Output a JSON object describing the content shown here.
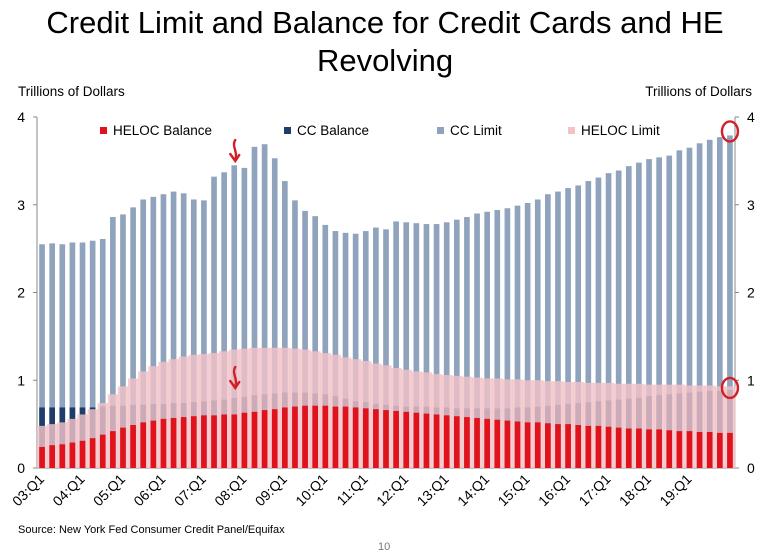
{
  "colors": {
    "heloc_balance": "#e0121c",
    "cc_balance": "#1f3d6b",
    "cc_limit": "#8fa3bd",
    "heloc_limit": "#f1c3c8",
    "annotation": "#d21f28"
  },
  "chart_data": {
    "type": "bar",
    "title": "Credit Limit and Balance for Credit Cards and HE Revolving",
    "ylabel_left": "Trillions of Dollars",
    "ylabel_right": "Trillions of Dollars",
    "ylim": [
      0,
      4
    ],
    "yticks": [
      "0",
      "1",
      "2",
      "3",
      "4"
    ],
    "xtick_labels": [
      "03:Q1",
      "04:Q1",
      "05:Q1",
      "06:Q1",
      "07:Q1",
      "08:Q1",
      "09:Q1",
      "10:Q1",
      "11:Q1",
      "12:Q1",
      "13:Q1",
      "14:Q1",
      "15:Q1",
      "16:Q1",
      "17:Q1",
      "18:Q1",
      "19:Q1"
    ],
    "legend": [
      "HELOC Balance",
      "CC Balance",
      "CC Limit",
      "HELOC Limit"
    ],
    "start_year": 2003,
    "series": [
      {
        "name": "HELOC Balance",
        "values": [
          0.24,
          0.26,
          0.27,
          0.29,
          0.31,
          0.34,
          0.38,
          0.42,
          0.46,
          0.49,
          0.52,
          0.54,
          0.56,
          0.57,
          0.58,
          0.59,
          0.6,
          0.6,
          0.61,
          0.61,
          0.63,
          0.64,
          0.66,
          0.67,
          0.69,
          0.7,
          0.71,
          0.71,
          0.71,
          0.7,
          0.7,
          0.69,
          0.68,
          0.67,
          0.66,
          0.65,
          0.64,
          0.63,
          0.62,
          0.61,
          0.6,
          0.59,
          0.58,
          0.57,
          0.56,
          0.55,
          0.54,
          0.53,
          0.52,
          0.52,
          0.51,
          0.5,
          0.5,
          0.49,
          0.48,
          0.48,
          0.47,
          0.46,
          0.45,
          0.45,
          0.44,
          0.44,
          0.43,
          0.42,
          0.42,
          0.41,
          0.41,
          0.4,
          0.4
        ]
      },
      {
        "name": "CC Balance",
        "values": [
          0.69,
          0.69,
          0.69,
          0.69,
          0.69,
          0.69,
          0.7,
          0.71,
          0.71,
          0.72,
          0.72,
          0.73,
          0.73,
          0.74,
          0.74,
          0.75,
          0.76,
          0.77,
          0.78,
          0.8,
          0.81,
          0.83,
          0.84,
          0.85,
          0.86,
          0.86,
          0.86,
          0.85,
          0.84,
          0.82,
          0.79,
          0.76,
          0.75,
          0.73,
          0.72,
          0.71,
          0.7,
          0.7,
          0.7,
          0.69,
          0.69,
          0.68,
          0.68,
          0.68,
          0.68,
          0.68,
          0.68,
          0.69,
          0.69,
          0.7,
          0.71,
          0.72,
          0.73,
          0.74,
          0.75,
          0.76,
          0.77,
          0.78,
          0.79,
          0.8,
          0.82,
          0.83,
          0.84,
          0.85,
          0.86,
          0.87,
          0.88,
          0.88,
          0.89
        ]
      },
      {
        "name": "CC Limit",
        "values": [
          2.55,
          2.56,
          2.55,
          2.57,
          2.57,
          2.59,
          2.61,
          2.86,
          2.89,
          2.97,
          3.06,
          3.09,
          3.12,
          3.15,
          3.13,
          3.06,
          3.05,
          3.32,
          3.37,
          3.45,
          3.42,
          3.66,
          3.69,
          3.53,
          3.27,
          3.05,
          2.93,
          2.87,
          2.77,
          2.7,
          2.68,
          2.67,
          2.7,
          2.74,
          2.72,
          2.81,
          2.8,
          2.79,
          2.78,
          2.78,
          2.8,
          2.83,
          2.86,
          2.9,
          2.92,
          2.94,
          2.96,
          2.99,
          3.02,
          3.06,
          3.12,
          3.15,
          3.19,
          3.22,
          3.27,
          3.31,
          3.36,
          3.39,
          3.44,
          3.48,
          3.52,
          3.54,
          3.56,
          3.62,
          3.65,
          3.7,
          3.74,
          3.77,
          3.79
        ]
      },
      {
        "name": "HELOC Limit",
        "values": [
          0.48,
          0.5,
          0.52,
          0.56,
          0.61,
          0.67,
          0.74,
          0.84,
          0.93,
          1.02,
          1.1,
          1.16,
          1.21,
          1.24,
          1.27,
          1.29,
          1.3,
          1.31,
          1.33,
          1.35,
          1.36,
          1.37,
          1.37,
          1.37,
          1.37,
          1.36,
          1.35,
          1.33,
          1.31,
          1.29,
          1.26,
          1.24,
          1.22,
          1.19,
          1.17,
          1.14,
          1.12,
          1.1,
          1.09,
          1.07,
          1.06,
          1.05,
          1.04,
          1.03,
          1.02,
          1.02,
          1.01,
          1.01,
          1.0,
          1.0,
          0.99,
          0.99,
          0.98,
          0.98,
          0.97,
          0.97,
          0.97,
          0.96,
          0.96,
          0.96,
          0.95,
          0.95,
          0.95,
          0.95,
          0.94,
          0.94,
          0.94,
          0.93,
          0.93
        ]
      }
    ],
    "annotations": [
      "arrow near 08:Q1 CC Limit peak",
      "arrow near 08:Q1 HELOC Limit peak",
      "circle on latest CC Limit",
      "circle on latest CC Balance"
    ]
  },
  "footer": {
    "source": "Source: New York Fed Consumer Credit Panel/Equifax",
    "page": "10"
  }
}
